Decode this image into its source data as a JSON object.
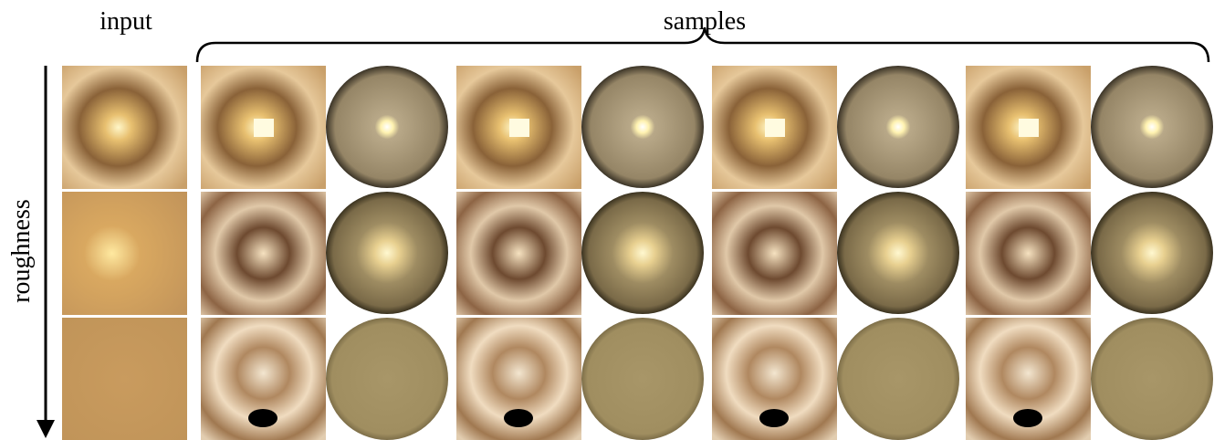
{
  "header": {
    "input_label": "input",
    "samples_label": "samples",
    "axis_label": "roughness"
  }
}
